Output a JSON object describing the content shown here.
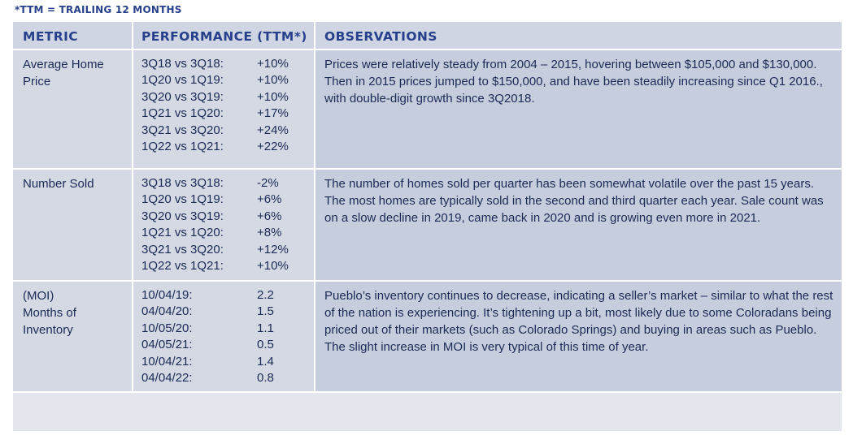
{
  "footnote": "*TTM = TRAILING 12 MONTHS",
  "headers": {
    "metric": "METRIC",
    "performance": "PERFORMANCE (TTM*)",
    "observations": "OBSERVATIONS"
  },
  "rows": [
    {
      "metric": "Average Home\nPrice",
      "performance": [
        {
          "period": "3Q18 vs 3Q18:",
          "value": "+10%"
        },
        {
          "period": "1Q20 vs 1Q19:",
          "value": "+10%"
        },
        {
          "period": "3Q20 vs 3Q19:",
          "value": "+10%"
        },
        {
          "period": "1Q21 vs 1Q20:",
          "value": "+17%"
        },
        {
          "period": "3Q21 vs 3Q20:",
          "value": "+24%"
        },
        {
          "period": "1Q22 vs 1Q21:",
          "value": "+22%"
        }
      ],
      "observation": "Prices were relatively steady from 2004 – 2015, hovering between $105,000 and $130,000. Then in 2015 prices jumped to $150,000, and have been steadily increasing since Q1 2016., with double-digit growth since 3Q2018."
    },
    {
      "metric": "Number Sold",
      "performance": [
        {
          "period": "3Q18 vs 3Q18:",
          "value": "-2%"
        },
        {
          "period": "1Q20 vs 1Q19:",
          "value": "+6%"
        },
        {
          "period": "3Q20 vs 3Q19:",
          "value": "+6%"
        },
        {
          "period": "1Q21 vs 1Q20:",
          "value": "+8%"
        },
        {
          "period": "3Q21 vs 3Q20:",
          "value": "+12%"
        },
        {
          "period": "1Q22 vs 1Q21:",
          "value": "+10%"
        }
      ],
      "observation": "The number of homes sold per quarter has been somewhat volatile over the past 15 years. The most homes are typically sold in the second and third quarter each year. Sale count was on a slow decline in 2019, came back in 2020 and is growing even more in 2021."
    },
    {
      "metric": "(MOI)\nMonths of\nInventory",
      "performance": [
        {
          "period": "10/04/19:",
          "value": "2.2"
        },
        {
          "period": "04/04/20:",
          "value": "1.5"
        },
        {
          "period": "10/05/20:",
          "value": "1.1"
        },
        {
          "period": "04/05/21:",
          "value": "0.5"
        },
        {
          "period": "10/04/21:",
          "value": "1.4"
        },
        {
          "period": "04/04/22:",
          "value": "0.8"
        }
      ],
      "observation": "Pueblo’s inventory continues to decrease, indicating a seller’s market – similar to what the rest of the nation is experiencing. It’s tightening up a bit, most likely due to some Coloradans being priced out of their markets (such as Colorado Springs) and buying in areas such as Pueblo. The slight increase in MOI is very typical of this time of year."
    }
  ]
}
